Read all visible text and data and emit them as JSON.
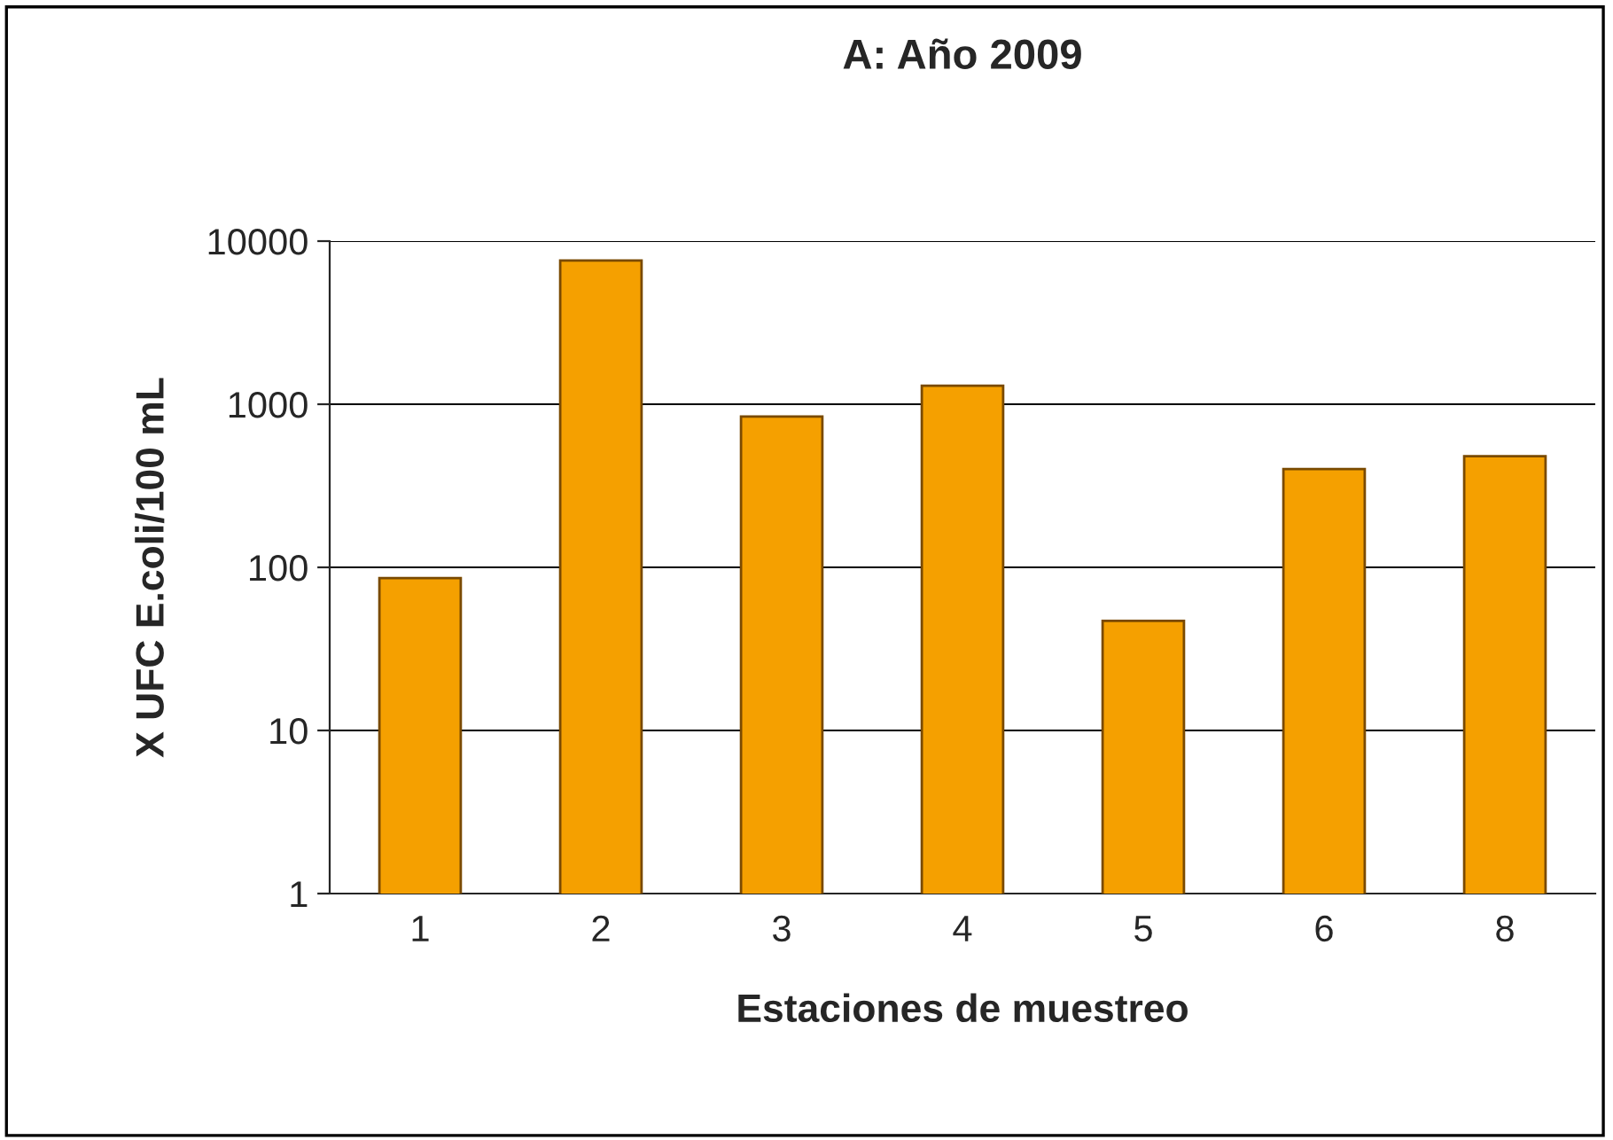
{
  "chart_data": {
    "type": "bar",
    "title": "A: Año 2009",
    "xlabel": "Estaciones de muestreo",
    "ylabel": "X UFC E.coli/100 mL",
    "categories": [
      "1",
      "2",
      "3",
      "4",
      "5",
      "6",
      "8"
    ],
    "values": [
      86,
      7600,
      840,
      1300,
      47,
      400,
      480
    ],
    "color": "#f5a000",
    "log": true,
    "ylim": [
      1,
      10000
    ],
    "yticks": [
      1,
      10,
      100,
      1000,
      10000
    ],
    "grid": "y"
  }
}
